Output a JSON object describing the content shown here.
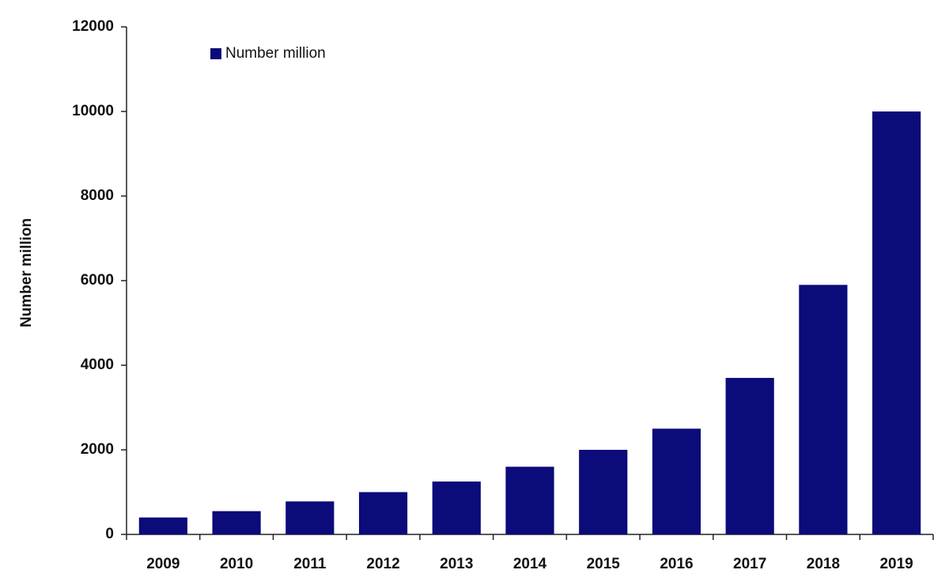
{
  "chart_data": {
    "type": "bar",
    "y_label": "Number million",
    "categories": [
      "2009",
      "2010",
      "2011",
      "2012",
      "2013",
      "2014",
      "2015",
      "2016",
      "2017",
      "2018",
      "2019"
    ],
    "series": [
      {
        "name": "Number million",
        "color": "#0b0b7a",
        "values": [
          400,
          550,
          780,
          1000,
          1250,
          1600,
          2000,
          2500,
          3700,
          5900,
          10000
        ]
      }
    ],
    "ylim": [
      0,
      12000
    ],
    "yticks": [
      0,
      2000,
      4000,
      6000,
      8000,
      10000,
      12000
    ],
    "grid": false,
    "legend": "top-left"
  }
}
